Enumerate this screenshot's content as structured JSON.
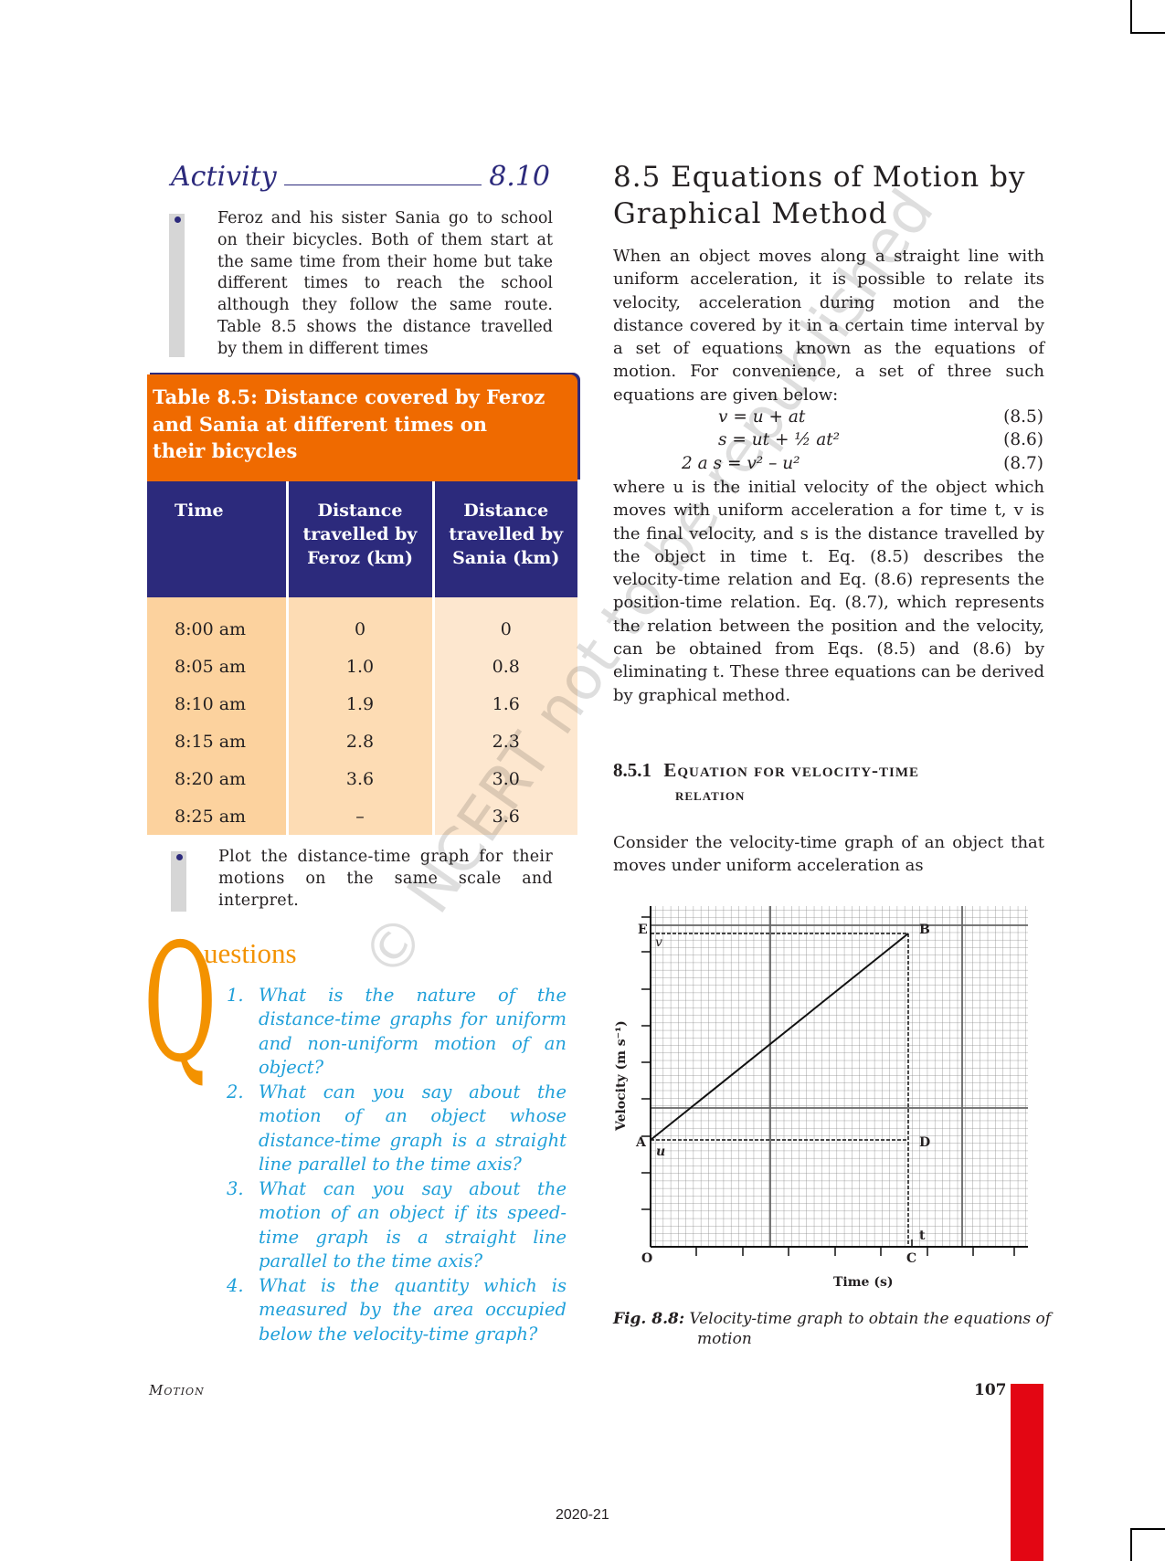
{
  "activity": {
    "label": "Activity",
    "number": "8.10",
    "text": "Feroz and his sister Sania go to school on their bicycles. Both of them start at the same time from their home but take different times to reach the school although they follow the same route. Table 8.5 shows the distance travelled by them in different times",
    "plot_text": "Plot the distance-time graph for their motions on the same scale and interpret."
  },
  "table": {
    "title_lines": [
      "Table 8.5: Distance covered by Feroz",
      "and Sania at different times on",
      "their bicycles"
    ],
    "headers": [
      "Time",
      "Distance travelled by Feroz (km)",
      "Distance travelled by Sania (km)"
    ],
    "rows": [
      [
        "8:00 am",
        "0",
        "0"
      ],
      [
        "8:05 am",
        "1.0",
        "0.8"
      ],
      [
        "8:10 am",
        "1.9",
        "1.6"
      ],
      [
        "8:15 am",
        "2.8",
        "2.3"
      ],
      [
        "8:20 am",
        "3.6",
        "3.0"
      ],
      [
        "8:25 am",
        "–",
        "3.6"
      ]
    ],
    "colors": {
      "title_bg": "#ef6a00",
      "header_bg": "#2c2a7c"
    }
  },
  "questions": {
    "drop_cap": "Q",
    "heading": "uestions",
    "color": "#1f9fd9",
    "items": [
      {
        "n": "1.",
        "text": "What is the nature of the distance-time graphs for uniform and non-uniform motion of an object?"
      },
      {
        "n": "2.",
        "text": "What can you say about the motion of an object whose distance-time graph is a straight line parallel to the time axis?"
      },
      {
        "n": "3.",
        "text": "What can you say about the motion of an object if its speed-time graph is a straight line parallel to the time axis?"
      },
      {
        "n": "4.",
        "text": "What is the quantity which is measured by the area occupied below the velocity-time graph?"
      }
    ]
  },
  "section": {
    "number": "8.5",
    "title": "Equations of Motion by Graphical Method",
    "intro": "When an object moves along a straight line with uniform acceleration, it is possible to relate its velocity, acceleration during motion and the distance covered by it in a certain time interval by a set of equations known as the equations of motion. For convenience, a set of three such equations are given below:",
    "equations": [
      {
        "lhs": "v",
        "rhs": "= u + at",
        "num": "(8.5)"
      },
      {
        "lhs": "s",
        "rhs": "= ut + ½ at²",
        "num": "(8.6)"
      },
      {
        "lhs": "2 a s",
        "rhs": "= v² – u²",
        "num": "(8.7)"
      }
    ],
    "explanation": "where u is the initial velocity of the object which moves with uniform acceleration a for time t, v is the final velocity, and s is the distance travelled by the object in time t. Eq. (8.5) describes the velocity-time relation and Eq. (8.6) represents the position-time relation. Eq. (8.7), which represents the relation between the position and the velocity, can be obtained from Eqs. (8.5) and (8.6) by eliminating t. These three equations can be derived by graphical method."
  },
  "subsection": {
    "number": "8.5.1",
    "title_line1": "Equation for velocity-time",
    "title_line2": "relation",
    "text": "Consider the velocity-time graph of an object that moves under uniform acceleration as"
  },
  "figure": {
    "ylabel": "Velocity (m s⁻¹)",
    "xlabel": "Time (s)",
    "points": {
      "O": "O",
      "A": "A",
      "B": "B",
      "C": "C",
      "D": "D",
      "E": "E"
    },
    "u": "u",
    "v": "v",
    "t": "t",
    "caption_label": "Fig. 8.8:",
    "caption": "Velocity-time graph to obtain the equations of motion"
  },
  "footer": {
    "chapter": "Motion",
    "page": "107",
    "year": "2020-21",
    "accent": "#e30613"
  },
  "watermark": "© NCERT not to be republished"
}
